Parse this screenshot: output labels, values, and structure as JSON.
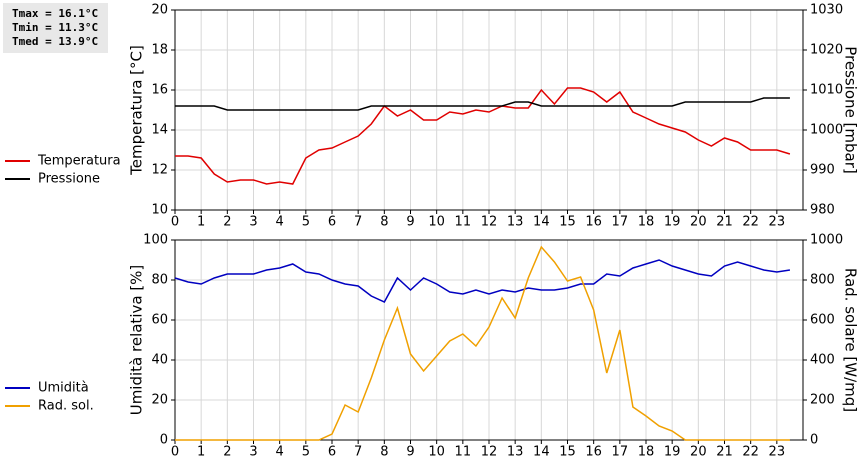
{
  "chart_data": [
    {
      "type": "line",
      "annotations": [
        "Tmax = 16.1°C",
        "Tmin = 11.3°C",
        "Tmed = 13.9°C"
      ],
      "ylabel": "Temperatura [°C]",
      "y2label": "Pressione [mbar]",
      "x": [
        0,
        0.5,
        1,
        1.5,
        2,
        2.5,
        3,
        3.5,
        4,
        4.5,
        5,
        5.5,
        6,
        6.5,
        7,
        7.5,
        8,
        8.5,
        9,
        9.5,
        10,
        10.5,
        11,
        11.5,
        12,
        12.5,
        13,
        13.5,
        14,
        14.5,
        15,
        15.5,
        16,
        16.5,
        17,
        17.5,
        18,
        18.5,
        19,
        19.5,
        20,
        20.5,
        21,
        21.5,
        22,
        22.5,
        23,
        23.5
      ],
      "xlim": [
        0,
        24
      ],
      "xticks": [
        0,
        1,
        2,
        3,
        4,
        5,
        6,
        7,
        8,
        9,
        10,
        11,
        12,
        13,
        14,
        15,
        16,
        17,
        18,
        19,
        20,
        21,
        22,
        23
      ],
      "ylim": [
        10,
        20
      ],
      "yticks": [
        10,
        12,
        14,
        16,
        18,
        20
      ],
      "y2lim": [
        980,
        1030
      ],
      "y2ticks": [
        980,
        990,
        1000,
        1010,
        1020,
        1030
      ],
      "grid": true,
      "legend": "left",
      "series": [
        {
          "name": "Temperatura",
          "color": "#e00000",
          "values": [
            12.7,
            12.7,
            12.6,
            11.8,
            11.4,
            11.5,
            11.5,
            11.3,
            11.4,
            11.3,
            12.6,
            13.0,
            13.1,
            13.4,
            13.7,
            14.3,
            15.2,
            14.7,
            15.0,
            14.5,
            14.5,
            14.9,
            14.8,
            15.0,
            14.9,
            15.2,
            15.1,
            15.1,
            16.0,
            15.3,
            16.1,
            16.1,
            15.9,
            15.4,
            15.9,
            14.9,
            14.6,
            14.3,
            14.1,
            13.9,
            13.5,
            13.2,
            13.6,
            13.4,
            13.0,
            13.0,
            13.0,
            12.8
          ]
        },
        {
          "name": "Pressione",
          "color": "#000000",
          "axis": "y2",
          "values": [
            1006,
            1006,
            1006,
            1006,
            1005,
            1005,
            1005,
            1005,
            1005,
            1005,
            1005,
            1005,
            1005,
            1005,
            1005,
            1006,
            1006,
            1006,
            1006,
            1006,
            1006,
            1006,
            1006,
            1006,
            1006,
            1006,
            1007,
            1007,
            1006,
            1006,
            1006,
            1006,
            1006,
            1006,
            1006,
            1006,
            1006,
            1006,
            1006,
            1007,
            1007,
            1007,
            1007,
            1007,
            1007,
            1008,
            1008,
            1008
          ]
        }
      ]
    },
    {
      "type": "line",
      "ylabel": "Umidità relativa [%]",
      "y2label": "Rad. solare [W/mq]",
      "x": [
        0,
        0.5,
        1,
        1.5,
        2,
        2.5,
        3,
        3.5,
        4,
        4.5,
        5,
        5.5,
        6,
        6.5,
        7,
        7.5,
        8,
        8.5,
        9,
        9.5,
        10,
        10.5,
        11,
        11.5,
        12,
        12.5,
        13,
        13.5,
        14,
        14.5,
        15,
        15.5,
        16,
        16.5,
        17,
        17.5,
        18,
        18.5,
        19,
        19.5,
        20,
        20.5,
        21,
        21.5,
        22,
        22.5,
        23,
        23.5
      ],
      "xlim": [
        0,
        24
      ],
      "xticks": [
        0,
        1,
        2,
        3,
        4,
        5,
        6,
        7,
        8,
        9,
        10,
        11,
        12,
        13,
        14,
        15,
        16,
        17,
        18,
        19,
        20,
        21,
        22,
        23
      ],
      "ylim": [
        0,
        100
      ],
      "yticks": [
        0,
        20,
        40,
        60,
        80,
        100
      ],
      "y2lim": [
        0,
        1000
      ],
      "y2ticks": [
        0,
        200,
        400,
        600,
        800,
        1000
      ],
      "grid": true,
      "legend": "left",
      "series": [
        {
          "name": "Umidità",
          "color": "#0000c0",
          "values": [
            81,
            79,
            78,
            81,
            83,
            83,
            83,
            85,
            86,
            88,
            84,
            83,
            80,
            78,
            77,
            72,
            69,
            81,
            75,
            81,
            78,
            74,
            73,
            75,
            73,
            75,
            74,
            76,
            75,
            75,
            76,
            78,
            78,
            83,
            82,
            86,
            88,
            90,
            87,
            85,
            83,
            82,
            87,
            89,
            87,
            85,
            84,
            85
          ]
        },
        {
          "name": "Rad. sol.",
          "color": "#f0a000",
          "axis": "y2",
          "values": [
            0,
            0,
            0,
            0,
            0,
            0,
            0,
            0,
            0,
            0,
            0,
            0,
            30,
            175,
            140,
            310,
            500,
            660,
            430,
            345,
            420,
            495,
            530,
            470,
            565,
            710,
            610,
            810,
            965,
            890,
            795,
            815,
            650,
            335,
            550,
            165,
            120,
            70,
            45,
            0,
            0,
            0,
            0,
            0,
            0,
            0,
            0,
            0
          ]
        }
      ]
    }
  ]
}
